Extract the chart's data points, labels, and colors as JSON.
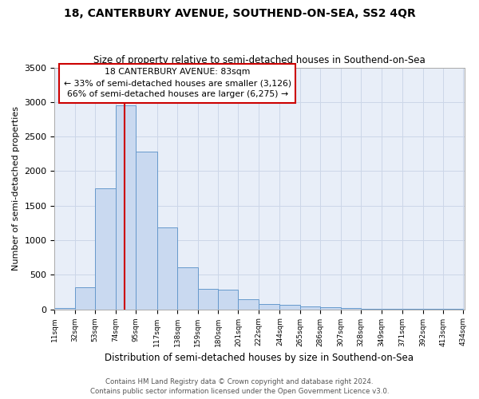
{
  "title": "18, CANTERBURY AVENUE, SOUTHEND-ON-SEA, SS2 4QR",
  "subtitle": "Size of property relative to semi-detached houses in Southend-on-Sea",
  "xlabel": "Distribution of semi-detached houses by size in Southend-on-Sea",
  "ylabel": "Number of semi-detached properties",
  "footnote1": "Contains HM Land Registry data © Crown copyright and database right 2024.",
  "footnote2": "Contains public sector information licensed under the Open Government Licence v3.0.",
  "annotation_title": "18 CANTERBURY AVENUE: 83sqm",
  "annotation_line1": "← 33% of semi-detached houses are smaller (3,126)",
  "annotation_line2": "66% of semi-detached houses are larger (6,275) →",
  "property_size": 83,
  "bar_left_edges": [
    11,
    32,
    53,
    74,
    95,
    117,
    138,
    159,
    180,
    201,
    222,
    244,
    265,
    286,
    307,
    328,
    349,
    371,
    392,
    413
  ],
  "bar_widths": [
    21,
    21,
    21,
    21,
    22,
    21,
    21,
    21,
    21,
    21,
    22,
    21,
    21,
    21,
    21,
    21,
    22,
    21,
    21,
    21
  ],
  "bar_heights": [
    20,
    315,
    1750,
    2950,
    2280,
    1180,
    610,
    300,
    285,
    140,
    75,
    60,
    40,
    30,
    20,
    10,
    5,
    3,
    2,
    2
  ],
  "bar_color": "#c9d9f0",
  "bar_edge_color": "#6699cc",
  "grid_color": "#ccd6e8",
  "bg_color": "#e8eef8",
  "red_line_color": "#cc0000",
  "annotation_box_color": "#cc0000",
  "ylim": [
    0,
    3500
  ],
  "xlim": [
    11,
    435
  ],
  "yticks": [
    0,
    500,
    1000,
    1500,
    2000,
    2500,
    3000,
    3500
  ],
  "tick_positions": [
    11,
    32,
    53,
    74,
    95,
    117,
    138,
    159,
    180,
    201,
    222,
    244,
    265,
    286,
    307,
    328,
    349,
    371,
    392,
    413,
    434
  ],
  "tick_labels": [
    "11sqm",
    "32sqm",
    "53sqm",
    "74sqm",
    "95sqm",
    "117sqm",
    "138sqm",
    "159sqm",
    "180sqm",
    "201sqm",
    "222sqm",
    "244sqm",
    "265sqm",
    "286sqm",
    "307sqm",
    "328sqm",
    "349sqm",
    "371sqm",
    "392sqm",
    "413sqm",
    "434sqm"
  ]
}
